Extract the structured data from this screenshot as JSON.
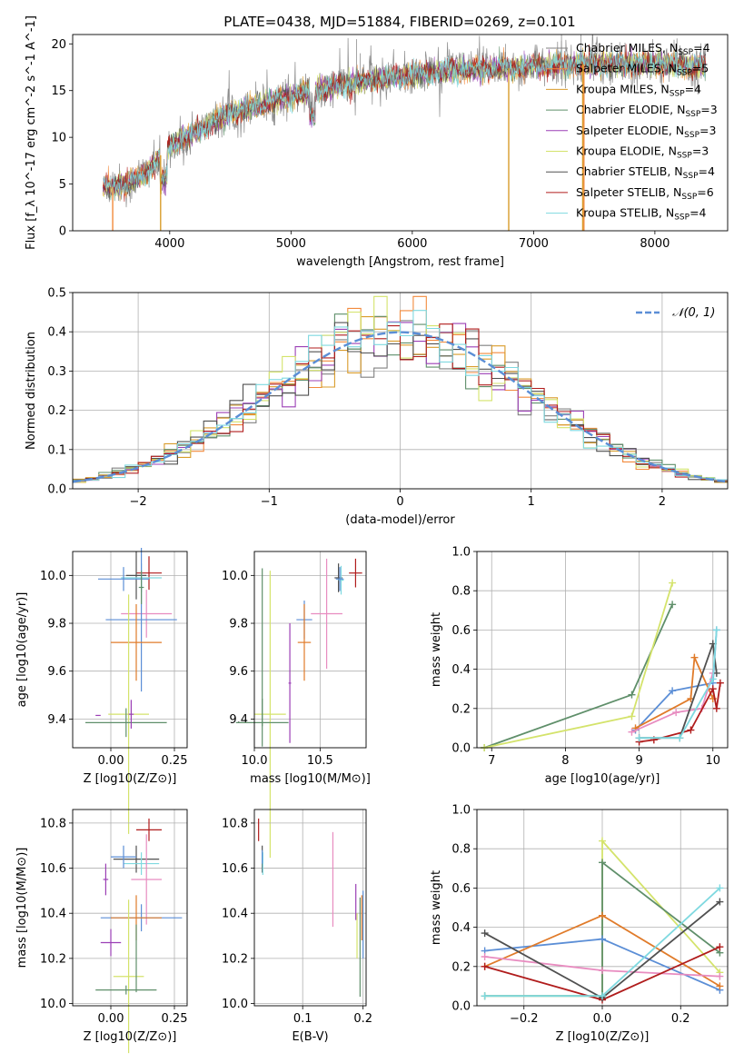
{
  "figure": {
    "title": "PLATE=0438, MJD=51884, FIBERID=0269, z=0.101"
  },
  "colors": {
    "Chabrier MILES": "#808080",
    "Salpeter MILES": "#f28a3c",
    "Kroupa MILES": "#d99c2b",
    "Chabrier ELODIE": "#5f8f6a",
    "Salpeter ELODIE": "#9b3fb5",
    "Kroupa ELODIE": "#d4e36b",
    "Chabrier STELIB": "#505050",
    "Salpeter STELIB": "#b01c1c",
    "Kroupa STELIB": "#7fd9e0",
    "pink": "#e88cc0",
    "blue": "#6a8fd8",
    "orange2": "#e07b2a",
    "normal": "#5b8ed6"
  },
  "chart_data": [
    {
      "id": "spectrum",
      "type": "line",
      "title": "PLATE=0438, MJD=51884, FIBERID=0269, z=0.101",
      "xlabel": "wavelength [Angstrom, rest frame]",
      "ylabel": "Flux [f_λ 10^-17 erg cm^-2 s^-1 A^-1]",
      "xlim": [
        3200,
        8600
      ],
      "ylim": [
        0,
        21
      ],
      "xticks": [
        4000,
        5000,
        6000,
        7000,
        8000
      ],
      "yticks": [
        0,
        5,
        10,
        15,
        20
      ],
      "continuum": {
        "x": [
          3450,
          3600,
          3800,
          3950,
          4100,
          4300,
          4500,
          4700,
          5000,
          5200,
          5500,
          5800,
          6000,
          6300,
          6600,
          6800,
          7000,
          7200,
          7400,
          7600,
          7800,
          8000,
          8200,
          8400
        ],
        "y": [
          4.6,
          4.8,
          6.0,
          8.5,
          9.8,
          11.2,
          12.7,
          13.3,
          14.4,
          15.0,
          15.8,
          16.4,
          16.7,
          17.1,
          17.3,
          17.4,
          17.6,
          17.7,
          17.8,
          17.9,
          17.9,
          17.8,
          17.7,
          17.6
        ]
      },
      "legend": [
        {
          "label": "Chabrier MILES, N_SSP=4",
          "color": "#808080"
        },
        {
          "label": "Salpeter MILES, N_SSP=5",
          "color": "#f28a3c"
        },
        {
          "label": "Kroupa MILES, N_SSP=4",
          "color": "#d99c2b"
        },
        {
          "label": "Chabrier ELODIE, N_SSP=3",
          "color": "#5f8f6a"
        },
        {
          "label": "Salpeter ELODIE, N_SSP=3",
          "color": "#9b3fb5"
        },
        {
          "label": "Kroupa ELODIE, N_SSP=3",
          "color": "#d4e36b"
        },
        {
          "label": "Chabrier STELIB, N_SSP=4",
          "color": "#505050"
        },
        {
          "label": "Salpeter STELIB, N_SSP=6",
          "color": "#b01c1c"
        },
        {
          "label": "Kroupa STELIB, N_SSP=4",
          "color": "#7fd9e0"
        }
      ],
      "legend_placement": "upper-right",
      "grid": false
    },
    {
      "id": "residual_hist",
      "type": "histogram",
      "xlabel": "(data-model)/error",
      "ylabel": "Normed distribution",
      "xlim": [
        -2.5,
        2.5
      ],
      "ylim": [
        0,
        0.5
      ],
      "xticks": [
        -2,
        -1,
        0,
        1,
        2
      ],
      "yticks": [
        0.0,
        0.1,
        0.2,
        0.3,
        0.4,
        0.5
      ],
      "normal_curve": {
        "label": "𝒩(0, 1)",
        "mu": 0,
        "sigma": 1
      },
      "grid": true
    },
    {
      "id": "age_vs_Z",
      "type": "errorbar",
      "xlabel": "Z [log10(Z/Z⊙)]",
      "ylabel": "age  [log10(age/yr)]",
      "xlim": [
        -0.15,
        0.3
      ],
      "ylim": [
        9.28,
        10.1
      ],
      "xticks": [
        0.0,
        0.25
      ],
      "yticks": [
        9.4,
        9.6,
        9.8,
        10.0
      ],
      "points": [
        {
          "x": 0.15,
          "y": 10.01,
          "xerr": 0.05,
          "yerr": 0.07,
          "color": "#b01c1c"
        },
        {
          "x": 0.1,
          "y": 10.0,
          "xerr": 0.04,
          "yerr": 0.1,
          "color": "#505050"
        },
        {
          "x": 0.12,
          "y": 9.99,
          "xerr": 0.08,
          "yerr": 0.06,
          "color": "#7fd9e0"
        },
        {
          "x": 0.05,
          "y": 9.985,
          "xerr": 0.1,
          "yerr": 0.05,
          "color": "#5b8ed6"
        },
        {
          "x": 0.14,
          "y": 9.84,
          "xerr": 0.1,
          "yerr": 0.1,
          "color": "#e88cc0"
        },
        {
          "x": 0.12,
          "y": 9.815,
          "xerr": 0.14,
          "yerr": 0.3,
          "color": "#5b8ed6"
        },
        {
          "x": 0.1,
          "y": 9.72,
          "xerr": 0.1,
          "yerr": 0.16,
          "color": "#e07b2a"
        },
        {
          "x": 0.07,
          "y": 9.42,
          "xerr": 0.08,
          "yerr": 0.5,
          "color": "#d4e36b"
        },
        {
          "x": 0.06,
          "y": 9.385,
          "xerr": 0.16,
          "yerr": 0.06,
          "color": "#5f8f6a"
        },
        {
          "x": -0.05,
          "y": 9.415,
          "xerr": 0.01,
          "yerr": 0.0,
          "color": "#9b3fb5"
        },
        {
          "x": 0.08,
          "y": 9.42,
          "xerr": 0.01,
          "yerr": 0.06,
          "color": "#9b3fb5"
        },
        {
          "x": 0.12,
          "y": 9.95,
          "xerr": 0.01,
          "yerr": 0.07,
          "color": "#5f8f6a"
        }
      ]
    },
    {
      "id": "age_vs_mass",
      "type": "errorbar",
      "xlabel": "mass [log10(M/M⊙)]",
      "ylabel": "",
      "xlim": [
        10.0,
        10.85
      ],
      "ylim": [
        9.28,
        10.1
      ],
      "xticks": [
        10.0,
        10.5
      ],
      "yticks": [
        9.4,
        9.6,
        9.8,
        10.0
      ],
      "points": [
        {
          "x": 10.77,
          "y": 10.01,
          "xerr": 0.05,
          "yerr": 0.06,
          "color": "#b01c1c"
        },
        {
          "x": 10.64,
          "y": 9.99,
          "xerr": 0.03,
          "yerr": 0.06,
          "color": "#505050"
        },
        {
          "x": 10.66,
          "y": 9.98,
          "xerr": 0.02,
          "yerr": 0.06,
          "color": "#7fd9e0"
        },
        {
          "x": 10.65,
          "y": 9.985,
          "xerr": 0.03,
          "yerr": 0.05,
          "color": "#5b8ed6"
        },
        {
          "x": 10.55,
          "y": 9.84,
          "xerr": 0.12,
          "yerr": 0.23,
          "color": "#e88cc0"
        },
        {
          "x": 10.38,
          "y": 9.815,
          "xerr": 0.06,
          "yerr": 0.08,
          "color": "#5b8ed6"
        },
        {
          "x": 10.38,
          "y": 9.72,
          "xerr": 0.05,
          "yerr": 0.16,
          "color": "#e07b2a"
        },
        {
          "x": 10.12,
          "y": 9.42,
          "xerr": 0.12,
          "yerr": 0.6,
          "color": "#d4e36b"
        },
        {
          "x": 10.06,
          "y": 9.385,
          "xerr": 0.2,
          "yerr": 0.1,
          "color": "#5f8f6a"
        },
        {
          "x": 10.27,
          "y": 9.55,
          "xerr": 0.01,
          "yerr": 0.25,
          "color": "#9b3fb5"
        },
        {
          "x": 10.06,
          "y": 9.7,
          "xerr": 0.0,
          "yerr": 0.33,
          "color": "#5f8f6a"
        }
      ]
    },
    {
      "id": "weight_vs_age",
      "type": "line",
      "xlabel": "age  [log10(age/yr)]",
      "ylabel": "mass weight",
      "xlim": [
        6.8,
        10.2
      ],
      "ylim": [
        0,
        1.0
      ],
      "xticks": [
        7,
        8,
        9,
        10
      ],
      "yticks": [
        0.0,
        0.2,
        0.4,
        0.6,
        0.8,
        1.0
      ],
      "grid": true,
      "series": [
        {
          "color": "#5f8f6a",
          "x": [
            6.9,
            8.9,
            9.45
          ],
          "y": [
            0.0,
            0.27,
            0.73
          ]
        },
        {
          "color": "#d4e36b",
          "x": [
            6.9,
            8.9,
            9.45
          ],
          "y": [
            0.0,
            0.16,
            0.84
          ]
        },
        {
          "color": "#5b8ed6",
          "x": [
            8.95,
            9.45,
            10.0,
            10.05
          ],
          "y": [
            0.09,
            0.29,
            0.33,
            0.6
          ]
        },
        {
          "color": "#e07b2a",
          "x": [
            8.95,
            9.7,
            9.75,
            10.0
          ],
          "y": [
            0.1,
            0.25,
            0.46,
            0.25
          ]
        },
        {
          "color": "#e88cc0",
          "x": [
            8.9,
            9.5,
            9.85,
            10.0
          ],
          "y": [
            0.08,
            0.18,
            0.2,
            0.38
          ]
        },
        {
          "color": "#b01c1c",
          "x": [
            9.0,
            9.2,
            9.7,
            10.0,
            10.05,
            10.1
          ],
          "y": [
            0.03,
            0.04,
            0.09,
            0.3,
            0.2,
            0.33
          ]
        },
        {
          "color": "#505050",
          "x": [
            9.0,
            9.55,
            10.0,
            10.05
          ],
          "y": [
            0.05,
            0.05,
            0.53,
            0.38
          ]
        },
        {
          "color": "#7fd9e0",
          "x": [
            9.0,
            9.55,
            10.0,
            10.05
          ],
          "y": [
            0.05,
            0.05,
            0.35,
            0.6
          ]
        }
      ]
    },
    {
      "id": "mass_vs_Z",
      "type": "errorbar",
      "xlabel": "Z [log10(Z/Z⊙)]",
      "ylabel": "mass [log10(M/M⊙)]",
      "xlim": [
        -0.15,
        0.3
      ],
      "ylim": [
        9.99,
        10.86
      ],
      "xticks": [
        0.0,
        0.25
      ],
      "yticks": [
        10.0,
        10.2,
        10.4,
        10.6,
        10.8
      ],
      "points": [
        {
          "x": 0.15,
          "y": 10.77,
          "xerr": 0.05,
          "yerr": 0.05,
          "color": "#b01c1c"
        },
        {
          "x": 0.1,
          "y": 10.64,
          "xerr": 0.09,
          "yerr": 0.06,
          "color": "#505050"
        },
        {
          "x": 0.12,
          "y": 10.62,
          "xerr": 0.07,
          "yerr": 0.05,
          "color": "#7fd9e0"
        },
        {
          "x": 0.05,
          "y": 10.65,
          "xerr": 0.05,
          "yerr": 0.05,
          "color": "#5b8ed6"
        },
        {
          "x": 0.14,
          "y": 10.55,
          "xerr": 0.06,
          "yerr": 0.2,
          "color": "#e88cc0"
        },
        {
          "x": 0.12,
          "y": 10.38,
          "xerr": 0.16,
          "yerr": 0.06,
          "color": "#5b8ed6"
        },
        {
          "x": 0.1,
          "y": 10.38,
          "xerr": 0.1,
          "yerr": 0.1,
          "color": "#e07b2a"
        },
        {
          "x": 0.07,
          "y": 10.12,
          "xerr": 0.06,
          "yerr": 0.34,
          "color": "#d4e36b"
        },
        {
          "x": 0.06,
          "y": 10.06,
          "xerr": 0.12,
          "yerr": 0.02,
          "color": "#5f8f6a"
        },
        {
          "x": 0.0,
          "y": 10.27,
          "xerr": 0.04,
          "yerr": 0.06,
          "color": "#9b3fb5"
        },
        {
          "x": -0.02,
          "y": 10.55,
          "xerr": 0.01,
          "yerr": 0.07,
          "color": "#9b3fb5"
        },
        {
          "x": 0.1,
          "y": 10.2,
          "xerr": 0.0,
          "yerr": 0.15,
          "color": "#5f8f6a"
        }
      ]
    },
    {
      "id": "mass_vs_ebv",
      "type": "errorbar",
      "xlabel": "E(B-V)",
      "ylabel": "",
      "xlim": [
        0.02,
        0.205
      ],
      "ylim": [
        9.99,
        10.86
      ],
      "xticks": [
        0.1,
        0.2
      ],
      "yticks": [
        10.0,
        10.2,
        10.4,
        10.6,
        10.8
      ],
      "points": [
        {
          "x": 0.027,
          "y": 10.77,
          "xerr": 0.0,
          "yerr": 0.05,
          "color": "#b01c1c"
        },
        {
          "x": 0.033,
          "y": 10.64,
          "xerr": 0.0,
          "yerr": 0.06,
          "color": "#505050"
        },
        {
          "x": 0.034,
          "y": 10.62,
          "xerr": 0.0,
          "yerr": 0.05,
          "color": "#7fd9e0"
        },
        {
          "x": 0.033,
          "y": 10.65,
          "xerr": 0.0,
          "yerr": 0.03,
          "color": "#5b8ed6"
        },
        {
          "x": 0.15,
          "y": 10.55,
          "xerr": 0.0,
          "yerr": 0.21,
          "color": "#e88cc0"
        },
        {
          "x": 0.2,
          "y": 10.35,
          "xerr": 0.0,
          "yerr": 0.15,
          "color": "#5b8ed6"
        },
        {
          "x": 0.198,
          "y": 10.38,
          "xerr": 0.0,
          "yerr": 0.1,
          "color": "#e07b2a"
        },
        {
          "x": 0.19,
          "y": 10.3,
          "xerr": 0.0,
          "yerr": 0.1,
          "color": "#d4e36b"
        },
        {
          "x": 0.195,
          "y": 10.25,
          "xerr": 0.0,
          "yerr": 0.22,
          "color": "#5f8f6a"
        },
        {
          "x": 0.188,
          "y": 10.45,
          "xerr": 0.0,
          "yerr": 0.08,
          "color": "#9b3fb5"
        }
      ]
    },
    {
      "id": "weight_vs_Z",
      "type": "line",
      "xlabel": "Z [log10(Z/Z⊙)]",
      "ylabel": "mass weight",
      "xlim": [
        -0.32,
        0.32
      ],
      "ylim": [
        0,
        1.0
      ],
      "xticks": [
        -0.2,
        0.0,
        0.2
      ],
      "yticks": [
        0.0,
        0.2,
        0.4,
        0.6,
        0.8,
        1.0
      ],
      "grid": true,
      "series": [
        {
          "color": "#d4e36b",
          "x": [
            -0.3,
            0.0,
            0.0,
            0.3
          ],
          "y": [
            0.05,
            0.05,
            0.84,
            0.17
          ]
        },
        {
          "color": "#5f8f6a",
          "x": [
            -0.3,
            0.0,
            0.0,
            0.3
          ],
          "y": [
            0.05,
            0.05,
            0.73,
            0.27
          ]
        },
        {
          "color": "#5b8ed6",
          "x": [
            -0.3,
            0.0,
            0.3
          ],
          "y": [
            0.28,
            0.34,
            0.08
          ]
        },
        {
          "color": "#e07b2a",
          "x": [
            -0.3,
            0.0,
            0.3
          ],
          "y": [
            0.2,
            0.46,
            0.1
          ]
        },
        {
          "color": "#e88cc0",
          "x": [
            -0.3,
            0.0,
            0.3
          ],
          "y": [
            0.25,
            0.18,
            0.15
          ]
        },
        {
          "color": "#b01c1c",
          "x": [
            -0.3,
            0.0,
            0.3
          ],
          "y": [
            0.2,
            0.03,
            0.3
          ]
        },
        {
          "color": "#505050",
          "x": [
            -0.3,
            0.0,
            0.3
          ],
          "y": [
            0.37,
            0.04,
            0.53
          ]
        },
        {
          "color": "#7fd9e0",
          "x": [
            -0.3,
            0.0,
            0.3
          ],
          "y": [
            0.05,
            0.05,
            0.6
          ]
        }
      ]
    }
  ]
}
